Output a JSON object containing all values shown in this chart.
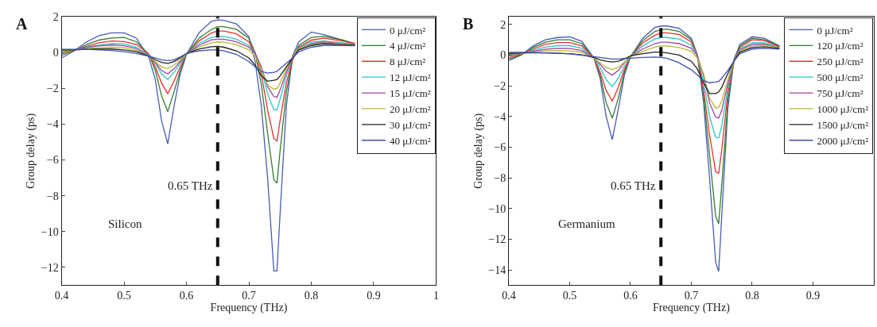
{
  "chart_data": [
    {
      "type": "line",
      "title": "A",
      "xlabel": "Frequency (THz)",
      "ylabel": "Group delay (ps)",
      "x": [
        0.4,
        0.42,
        0.44,
        0.46,
        0.48,
        0.5,
        0.52,
        0.54,
        0.55,
        0.56,
        0.57,
        0.58,
        0.59,
        0.6,
        0.62,
        0.64,
        0.65,
        0.66,
        0.68,
        0.7,
        0.71,
        0.72,
        0.73,
        0.74,
        0.745,
        0.75,
        0.76,
        0.77,
        0.78,
        0.8,
        0.82,
        0.85,
        0.87
      ],
      "series": [
        {
          "name": "0 μJ/cm²",
          "color": "#4a5bb5",
          "values": [
            -0.3,
            0.1,
            0.6,
            0.95,
            1.1,
            1.1,
            0.8,
            -0.3,
            -1.5,
            -3.8,
            -5.1,
            -3.0,
            -1.2,
            -0.1,
            1.1,
            1.75,
            1.82,
            1.8,
            1.6,
            0.9,
            -0.5,
            -3.0,
            -7.0,
            -12.2,
            -12.2,
            -9.0,
            -3.0,
            -0.2,
            0.6,
            1.15,
            1.0,
            0.7,
            0.45
          ]
        },
        {
          "name": "4 μJ/cm²",
          "color": "#2e7d32",
          "values": [
            -0.15,
            0.1,
            0.45,
            0.7,
            0.82,
            0.85,
            0.6,
            -0.1,
            -1.0,
            -2.4,
            -3.3,
            -2.2,
            -1.0,
            -0.1,
            0.8,
            1.3,
            1.45,
            1.45,
            1.3,
            0.8,
            0.0,
            -1.8,
            -4.5,
            -7.1,
            -7.3,
            -5.5,
            -2.2,
            -0.4,
            0.4,
            0.85,
            0.9,
            0.7,
            0.5
          ]
        },
        {
          "name": "8 μJ/cm²",
          "color": "#e8302a",
          "values": [
            -0.05,
            0.15,
            0.35,
            0.55,
            0.65,
            0.62,
            0.45,
            -0.1,
            -0.8,
            -1.7,
            -2.3,
            -1.6,
            -0.8,
            -0.1,
            0.65,
            1.1,
            1.2,
            1.2,
            1.05,
            0.6,
            0.0,
            -1.2,
            -3.2,
            -4.8,
            -4.95,
            -3.8,
            -1.7,
            -0.4,
            0.3,
            0.7,
            0.8,
            0.65,
            0.5
          ]
        },
        {
          "name": "12 μJ/cm²",
          "color": "#2ec4c4",
          "values": [
            0.05,
            0.15,
            0.3,
            0.42,
            0.5,
            0.48,
            0.3,
            -0.15,
            -0.6,
            -1.2,
            -1.5,
            -1.1,
            -0.6,
            -0.1,
            0.5,
            0.85,
            0.9,
            0.9,
            0.75,
            0.4,
            0.0,
            -0.9,
            -2.3,
            -3.2,
            -3.2,
            -2.6,
            -1.3,
            -0.3,
            0.25,
            0.6,
            0.65,
            0.55,
            0.45
          ]
        },
        {
          "name": "15 μJ/cm²",
          "color": "#a040a0",
          "values": [
            0.1,
            0.15,
            0.28,
            0.38,
            0.42,
            0.38,
            0.22,
            -0.2,
            -0.55,
            -1.0,
            -1.2,
            -0.9,
            -0.5,
            -0.1,
            0.4,
            0.72,
            0.75,
            0.75,
            0.6,
            0.3,
            -0.05,
            -0.8,
            -1.9,
            -2.45,
            -2.5,
            -2.1,
            -1.1,
            -0.3,
            0.2,
            0.5,
            0.6,
            0.5,
            0.45
          ]
        },
        {
          "name": "20 μJ/cm²",
          "color": "#b8b830",
          "values": [
            0.12,
            0.15,
            0.22,
            0.28,
            0.3,
            0.27,
            0.12,
            -0.2,
            -0.5,
            -0.8,
            -0.9,
            -0.7,
            -0.4,
            -0.1,
            0.3,
            0.55,
            0.6,
            0.58,
            0.45,
            0.15,
            -0.2,
            -0.9,
            -1.8,
            -2.05,
            -2.0,
            -1.7,
            -0.9,
            -0.25,
            0.2,
            0.45,
            0.55,
            0.5,
            0.45
          ]
        },
        {
          "name": "30 μJ/cm²",
          "color": "#222222",
          "values": [
            0.15,
            0.15,
            0.18,
            0.2,
            0.2,
            0.15,
            0.05,
            -0.2,
            -0.4,
            -0.55,
            -0.6,
            -0.5,
            -0.3,
            -0.05,
            0.2,
            0.33,
            0.35,
            0.3,
            0.1,
            -0.3,
            -0.7,
            -1.3,
            -1.6,
            -1.55,
            -1.5,
            -1.3,
            -0.8,
            -0.3,
            0.15,
            0.4,
            0.5,
            0.45,
            0.42
          ]
        },
        {
          "name": "40 μJ/cm²",
          "color": "#3f51b0",
          "values": [
            0.18,
            0.18,
            0.18,
            0.15,
            0.12,
            0.05,
            -0.05,
            -0.2,
            -0.3,
            -0.4,
            -0.45,
            -0.4,
            -0.25,
            -0.05,
            0.1,
            0.15,
            0.15,
            0.1,
            -0.1,
            -0.5,
            -0.8,
            -1.05,
            -1.15,
            -1.1,
            -1.05,
            -0.9,
            -0.6,
            -0.3,
            0.05,
            0.3,
            0.4,
            0.4,
            0.38
          ]
        }
      ],
      "xlim": [
        0.4,
        1
      ],
      "xticks": [
        0.4,
        0.5,
        0.6,
        0.7,
        0.8,
        0.9,
        1
      ],
      "ylim": [
        -13,
        2
      ],
      "yticks": [
        {
          "value": -12,
          "label": "−12"
        },
        {
          "value": -10,
          "label": "−10"
        },
        {
          "value": -8,
          "label": "−8"
        },
        {
          "value": -6,
          "label": "−6"
        },
        {
          "value": -4,
          "label": "−4"
        },
        {
          "value": -2,
          "label": "−2"
        },
        0,
        2
      ],
      "ref_lines": [
        {
          "axis": "x",
          "value": 0.65,
          "label": "0.65 THz",
          "color": "#111111",
          "line_style": "dashed"
        }
      ],
      "annotations": [
        "Silicon"
      ],
      "legend": "top right",
      "marker": "none",
      "line_style": "solid"
    },
    {
      "type": "line",
      "title": "B",
      "xlabel": "Frequency (THz)",
      "ylabel": "Group delay (ps)",
      "x": [
        0.4,
        0.42,
        0.44,
        0.46,
        0.48,
        0.5,
        0.52,
        0.54,
        0.55,
        0.56,
        0.57,
        0.58,
        0.59,
        0.6,
        0.62,
        0.64,
        0.65,
        0.66,
        0.68,
        0.7,
        0.71,
        0.72,
        0.73,
        0.74,
        0.745,
        0.75,
        0.76,
        0.77,
        0.78,
        0.8,
        0.82,
        0.845
      ],
      "series": [
        {
          "name": "0 μJ/cm²",
          "color": "#4a5bb5",
          "values": [
            -0.35,
            0.0,
            0.6,
            1.0,
            1.15,
            1.2,
            0.9,
            -0.2,
            -1.5,
            -4.0,
            -5.5,
            -3.5,
            -1.3,
            -0.1,
            1.1,
            1.8,
            1.9,
            1.9,
            1.75,
            1.1,
            0.0,
            -3.0,
            -8.0,
            -13.5,
            -14.1,
            -10.5,
            -3.5,
            -0.3,
            0.7,
            1.2,
            1.1,
            0.6
          ]
        },
        {
          "name": "120 μJ/cm²",
          "color": "#2e7d32",
          "values": [
            -0.25,
            0.0,
            0.5,
            0.85,
            1.0,
            1.0,
            0.75,
            -0.2,
            -1.3,
            -3.1,
            -4.1,
            -2.8,
            -1.1,
            -0.1,
            0.95,
            1.55,
            1.65,
            1.7,
            1.55,
            1.0,
            0.0,
            -2.6,
            -6.5,
            -10.5,
            -11.0,
            -8.5,
            -3.0,
            -0.4,
            0.6,
            1.1,
            1.0,
            0.6
          ]
        },
        {
          "name": "250 μJ/cm²",
          "color": "#e8302a",
          "values": [
            -0.15,
            0.05,
            0.4,
            0.7,
            0.82,
            0.82,
            0.6,
            -0.2,
            -1.1,
            -2.3,
            -3.0,
            -2.1,
            -0.9,
            -0.1,
            0.8,
            1.3,
            1.45,
            1.45,
            1.35,
            0.85,
            0.0,
            -2.2,
            -5.2,
            -7.6,
            -7.7,
            -6.2,
            -2.5,
            -0.4,
            0.5,
            1.0,
            0.95,
            0.55
          ]
        },
        {
          "name": "500 μJ/cm²",
          "color": "#2ec4c4",
          "values": [
            -0.05,
            0.08,
            0.32,
            0.52,
            0.62,
            0.62,
            0.45,
            -0.2,
            -0.8,
            -1.6,
            -2.05,
            -1.5,
            -0.7,
            -0.1,
            0.6,
            1.05,
            1.15,
            1.15,
            1.05,
            0.65,
            0.0,
            -1.7,
            -4.0,
            -5.35,
            -5.4,
            -4.6,
            -2.2,
            -0.4,
            0.4,
            0.8,
            0.8,
            0.5
          ]
        },
        {
          "name": "750 μJ/cm²",
          "color": "#a040a0",
          "values": [
            0.0,
            0.1,
            0.25,
            0.38,
            0.45,
            0.43,
            0.3,
            -0.2,
            -0.6,
            -1.05,
            -1.3,
            -1.0,
            -0.5,
            -0.1,
            0.4,
            0.75,
            0.85,
            0.85,
            0.75,
            0.45,
            -0.05,
            -1.3,
            -3.1,
            -4.05,
            -4.1,
            -3.6,
            -1.9,
            -0.4,
            0.35,
            0.7,
            0.72,
            0.5
          ]
        },
        {
          "name": "1000 μJ/cm²",
          "color": "#b8b830",
          "values": [
            0.05,
            0.12,
            0.2,
            0.27,
            0.3,
            0.28,
            0.18,
            -0.2,
            -0.5,
            -0.8,
            -0.95,
            -0.8,
            -0.45,
            -0.1,
            0.25,
            0.52,
            0.6,
            0.6,
            0.5,
            0.25,
            -0.2,
            -1.2,
            -2.8,
            -3.45,
            -3.4,
            -3.0,
            -1.6,
            -0.4,
            0.3,
            0.6,
            0.65,
            0.5
          ]
        },
        {
          "name": "1500 μJ/cm²",
          "color": "#222222",
          "values": [
            0.1,
            0.15,
            0.15,
            0.15,
            0.12,
            0.1,
            0.02,
            -0.15,
            -0.3,
            -0.4,
            -0.45,
            -0.4,
            -0.25,
            -0.05,
            0.1,
            0.2,
            0.2,
            0.15,
            0.0,
            -0.4,
            -0.9,
            -1.8,
            -2.5,
            -2.5,
            -2.4,
            -2.1,
            -1.2,
            -0.4,
            0.2,
            0.5,
            0.55,
            0.45
          ]
        },
        {
          "name": "2000 μJ/cm²",
          "color": "#3f51b0",
          "values": [
            0.18,
            0.18,
            0.17,
            0.15,
            0.12,
            0.08,
            0.0,
            -0.1,
            -0.15,
            -0.2,
            -0.25,
            -0.25,
            -0.22,
            -0.2,
            -0.15,
            -0.12,
            -0.15,
            -0.2,
            -0.5,
            -0.95,
            -1.3,
            -1.65,
            -1.8,
            -1.75,
            -1.7,
            -1.5,
            -1.0,
            -0.4,
            0.1,
            0.4,
            0.45,
            0.4
          ]
        }
      ],
      "xlim": [
        0.4,
        1.0
      ],
      "xticks": [
        0.4,
        0.5,
        0.6,
        0.7,
        0.8,
        0.9
      ],
      "ylim": [
        -15,
        2.5
      ],
      "yticks": [
        {
          "value": -14,
          "label": "−14"
        },
        {
          "value": -12,
          "label": "−12"
        },
        {
          "value": -10,
          "label": "−10"
        },
        {
          "value": -8,
          "label": "−8"
        },
        {
          "value": -6,
          "label": "−6"
        },
        {
          "value": -4,
          "label": "−4"
        },
        {
          "value": -2,
          "label": "−2"
        },
        0,
        2
      ],
      "ref_lines": [
        {
          "axis": "x",
          "value": 0.65,
          "label": "0.65 THz",
          "color": "#111111",
          "line_style": "dashed"
        }
      ],
      "annotations": [
        "Germanium"
      ],
      "legend": "top right",
      "marker": "none",
      "line_style": "solid"
    }
  ]
}
